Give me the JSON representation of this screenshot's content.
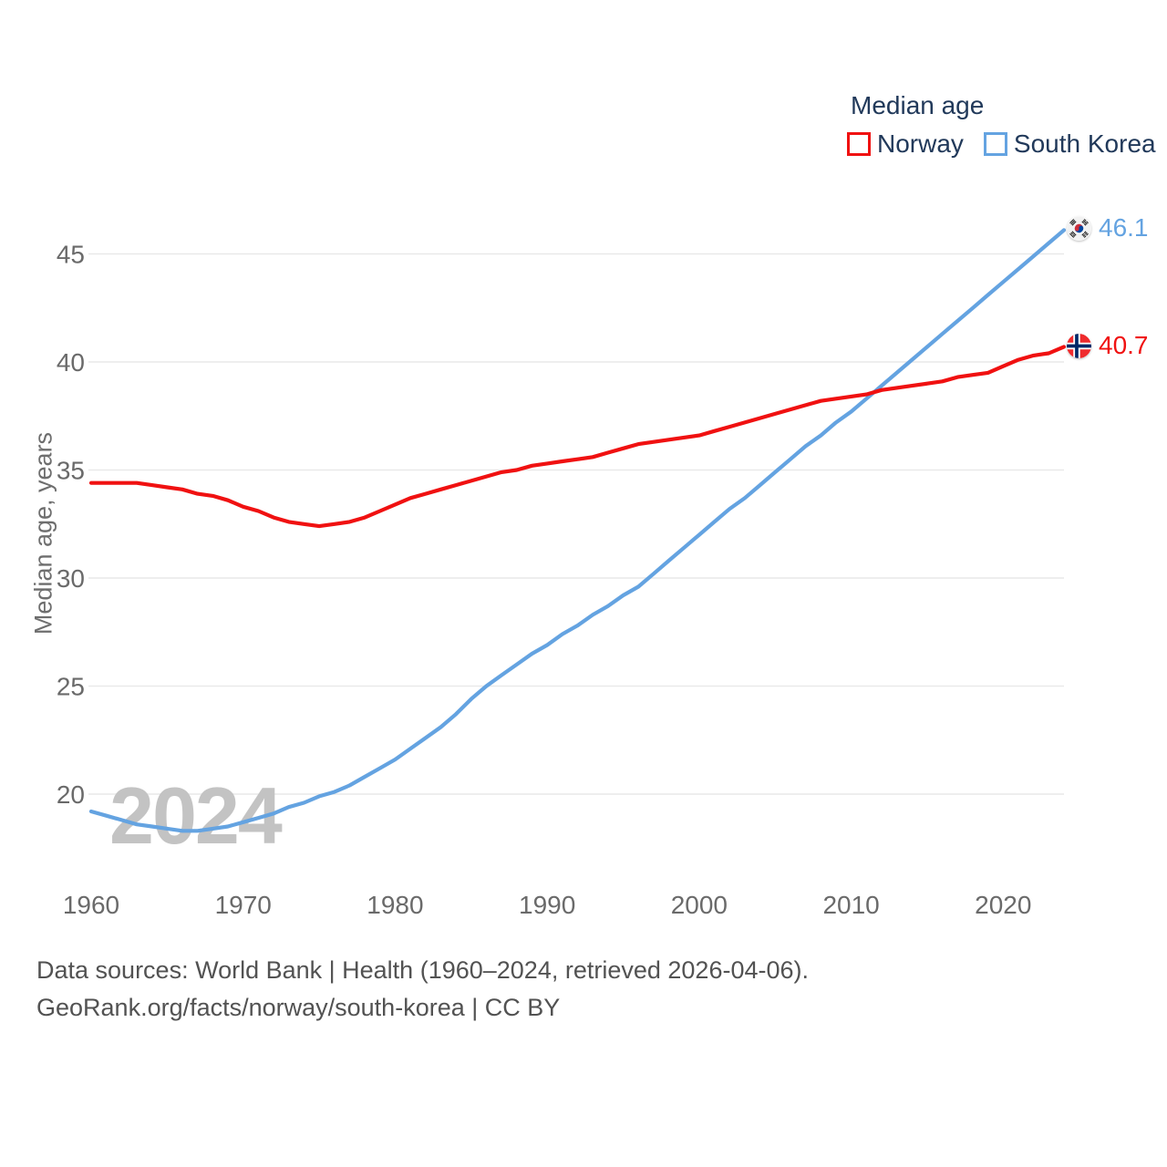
{
  "legend": {
    "title": "Median age",
    "position": "top-right"
  },
  "watermark": "2024",
  "footer": {
    "line1": "Data sources: World Bank | Health (1960–2024, retrieved 2026-04-06).",
    "line2": "GeoRank.org/facts/norway/south-korea | CC BY"
  },
  "chart_data": {
    "type": "line",
    "title": "Median age",
    "xlabel": "",
    "ylabel": "Median age, years",
    "x_start": 1960,
    "x_end": 2024,
    "xticks": [
      1960,
      1970,
      1980,
      1990,
      2000,
      2010,
      2020
    ],
    "yticks": [
      20,
      25,
      30,
      35,
      40,
      45
    ],
    "ylim": [
      17.5,
      47.5
    ],
    "grid": "horizontal",
    "legend_position": "top-right",
    "colors": {
      "norway": "#f01111",
      "south_korea": "#64a3e1",
      "grid": "#e9e9e9",
      "axis_text": "#6a6a6a",
      "legend_text": "#21395a",
      "watermark": "#c3c3c3",
      "footer_text": "#525252"
    },
    "series": [
      {
        "name": "Norway",
        "color": "#f01111",
        "end_label": "40.7",
        "values": [
          34.4,
          34.4,
          34.4,
          34.4,
          34.3,
          34.2,
          34.1,
          33.9,
          33.8,
          33.6,
          33.3,
          33.1,
          32.8,
          32.6,
          32.5,
          32.4,
          32.5,
          32.6,
          32.8,
          33.1,
          33.4,
          33.7,
          33.9,
          34.1,
          34.3,
          34.5,
          34.7,
          34.9,
          35.0,
          35.2,
          35.3,
          35.4,
          35.5,
          35.6,
          35.8,
          36.0,
          36.2,
          36.3,
          36.4,
          36.5,
          36.6,
          36.8,
          37.0,
          37.2,
          37.4,
          37.6,
          37.8,
          38.0,
          38.2,
          38.3,
          38.4,
          38.5,
          38.7,
          38.8,
          38.9,
          39.0,
          39.1,
          39.3,
          39.4,
          39.5,
          39.8,
          40.1,
          40.3,
          40.4,
          40.7
        ]
      },
      {
        "name": "South Korea",
        "color": "#64a3e1",
        "end_label": "46.1",
        "values": [
          19.2,
          19.0,
          18.8,
          18.6,
          18.5,
          18.4,
          18.3,
          18.3,
          18.4,
          18.5,
          18.7,
          18.9,
          19.1,
          19.4,
          19.6,
          19.9,
          20.1,
          20.4,
          20.8,
          21.2,
          21.6,
          22.1,
          22.6,
          23.1,
          23.7,
          24.4,
          25.0,
          25.5,
          26.0,
          26.5,
          26.9,
          27.4,
          27.8,
          28.3,
          28.7,
          29.2,
          29.6,
          30.2,
          30.8,
          31.4,
          32.0,
          32.6,
          33.2,
          33.7,
          34.3,
          34.9,
          35.5,
          36.1,
          36.6,
          37.2,
          37.7,
          38.3,
          38.9,
          39.5,
          40.1,
          40.7,
          41.3,
          41.9,
          42.5,
          43.1,
          43.7,
          44.3,
          44.9,
          45.5,
          46.1
        ]
      }
    ]
  }
}
